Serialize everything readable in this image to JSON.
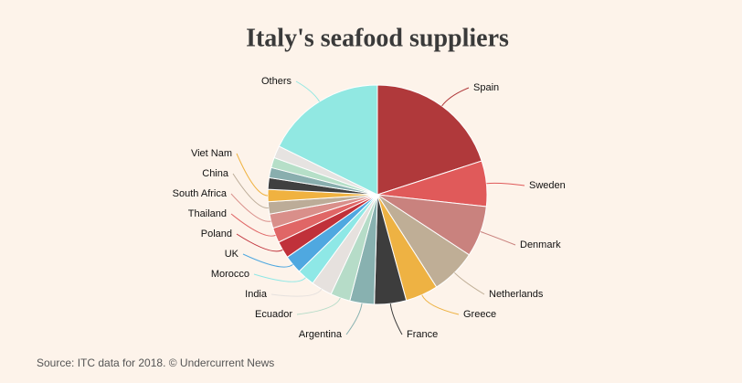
{
  "chart_data": {
    "type": "pie",
    "title": "Italy's seafood suppliers",
    "source": "Source: ITC data for 2018. © Undercurrent News",
    "categories": [
      "Spain",
      "Sweden",
      "Denmark",
      "Netherlands",
      "Greece",
      "France",
      "Argentina",
      "Ecuador",
      "India",
      "Morocco",
      "UK",
      "Poland",
      "Thailand",
      "South Africa",
      "China",
      "Viet Nam",
      null,
      null,
      null,
      null,
      "Others"
    ],
    "values": [
      20,
      6.7,
      7.5,
      6.7,
      4.8,
      4.7,
      3.6,
      2.9,
      3.1,
      2.6,
      2.7,
      2.5,
      2.2,
      2.1,
      1.8,
      1.8,
      1.7,
      1.5,
      1.5,
      1.8,
      17.7
    ],
    "colors": [
      "#b0393b",
      "#e05a5a",
      "#c9827e",
      "#bfae96",
      "#eeb243",
      "#3d3d3d",
      "#88b1b0",
      "#b6dcc8",
      "#e6e1de",
      "#8ee8e6",
      "#4fa8e0",
      "#c0313a",
      "#e06666",
      "#d98f8a",
      "#bcac98",
      "#f0b240",
      "#404040",
      "#89aeae",
      "#b6dfc8",
      "#e6e3e1",
      "#91e8e2"
    ]
  }
}
